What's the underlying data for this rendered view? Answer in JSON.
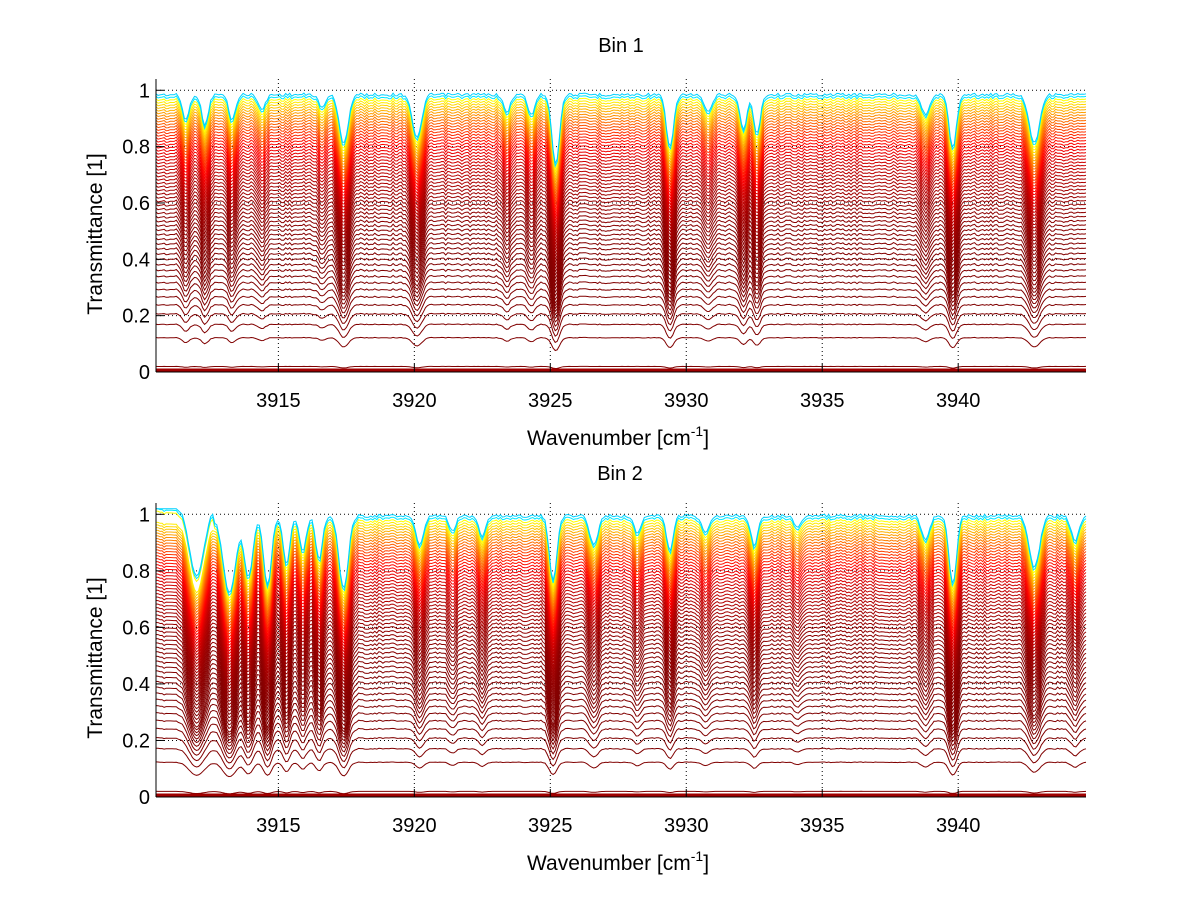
{
  "chart_data": [
    {
      "type": "line",
      "title": "Bin 1",
      "xlabel": "Wavenumber [cm",
      "xlabel_superscript": "-1",
      "xlabel_suffix": "]",
      "ylabel": "Transmittance [1]",
      "xlim": [
        3910.5,
        3944.7
      ],
      "ylim": [
        0,
        1.04
      ],
      "xticks": [
        3915,
        3920,
        3925,
        3930,
        3935,
        3940
      ],
      "xtick_labels": [
        "3915",
        "3920",
        "3925",
        "3930",
        "3935",
        "3940"
      ],
      "yticks": [
        0,
        0.2,
        0.4,
        0.6,
        0.8,
        1
      ],
      "ytick_labels": [
        "0",
        "0.2",
        "0.4",
        "0.6",
        "0.8",
        "1"
      ],
      "grid": "dotted",
      "series_count": 60,
      "colormap": "jet",
      "baseline_transmittance_range": [
        0.0,
        0.99
      ],
      "absorption_lines": [
        {
          "center": 3911.6,
          "depth": 0.1,
          "width": 0.12
        },
        {
          "center": 3912.3,
          "depth": 0.12,
          "width": 0.12
        },
        {
          "center": 3913.3,
          "depth": 0.1,
          "width": 0.12
        },
        {
          "center": 3914.4,
          "depth": 0.06,
          "width": 0.12
        },
        {
          "center": 3916.6,
          "depth": 0.05,
          "width": 0.12
        },
        {
          "center": 3917.4,
          "depth": 0.2,
          "width": 0.16
        },
        {
          "center": 3920.1,
          "depth": 0.18,
          "width": 0.16
        },
        {
          "center": 3923.4,
          "depth": 0.07,
          "width": 0.12
        },
        {
          "center": 3924.3,
          "depth": 0.08,
          "width": 0.12
        },
        {
          "center": 3925.2,
          "depth": 0.3,
          "width": 0.13
        },
        {
          "center": 3929.4,
          "depth": 0.22,
          "width": 0.13
        },
        {
          "center": 3930.8,
          "depth": 0.07,
          "width": 0.14
        },
        {
          "center": 3932.1,
          "depth": 0.14,
          "width": 0.12
        },
        {
          "center": 3932.6,
          "depth": 0.16,
          "width": 0.12
        },
        {
          "center": 3938.8,
          "depth": 0.08,
          "width": 0.14
        },
        {
          "center": 3939.8,
          "depth": 0.22,
          "width": 0.13
        },
        {
          "center": 3942.8,
          "depth": 0.2,
          "width": 0.18
        }
      ]
    },
    {
      "type": "line",
      "title": "Bin 2",
      "xlabel": "Wavenumber [cm",
      "xlabel_superscript": "-1",
      "xlabel_suffix": "]",
      "ylabel": "Transmittance [1]",
      "xlim": [
        3910.5,
        3944.7
      ],
      "ylim": [
        0,
        1.04
      ],
      "xticks": [
        3915,
        3920,
        3925,
        3930,
        3935,
        3940
      ],
      "xtick_labels": [
        "3915",
        "3920",
        "3925",
        "3930",
        "3935",
        "3940"
      ],
      "yticks": [
        0,
        0.2,
        0.4,
        0.6,
        0.8,
        1
      ],
      "ytick_labels": [
        "0",
        "0.2",
        "0.4",
        "0.6",
        "0.8",
        "1"
      ],
      "grid": "dotted",
      "series_count": 60,
      "colormap": "jet",
      "baseline_transmittance_range": [
        0.0,
        1.0
      ],
      "absorption_lines": [
        {
          "center": 3912.0,
          "depth": 0.3,
          "width": 0.25
        },
        {
          "center": 3913.2,
          "depth": 0.34,
          "width": 0.22
        },
        {
          "center": 3913.9,
          "depth": 0.26,
          "width": 0.15
        },
        {
          "center": 3914.6,
          "depth": 0.3,
          "width": 0.14
        },
        {
          "center": 3915.3,
          "depth": 0.2,
          "width": 0.12
        },
        {
          "center": 3915.9,
          "depth": 0.14,
          "width": 0.12
        },
        {
          "center": 3916.5,
          "depth": 0.18,
          "width": 0.12
        },
        {
          "center": 3917.4,
          "depth": 0.32,
          "width": 0.16
        },
        {
          "center": 3920.2,
          "depth": 0.12,
          "width": 0.14
        },
        {
          "center": 3921.4,
          "depth": 0.06,
          "width": 0.12
        },
        {
          "center": 3922.5,
          "depth": 0.08,
          "width": 0.12
        },
        {
          "center": 3925.1,
          "depth": 0.28,
          "width": 0.13
        },
        {
          "center": 3926.6,
          "depth": 0.12,
          "width": 0.14
        },
        {
          "center": 3928.2,
          "depth": 0.07,
          "width": 0.12
        },
        {
          "center": 3929.4,
          "depth": 0.14,
          "width": 0.12
        },
        {
          "center": 3930.7,
          "depth": 0.06,
          "width": 0.14
        },
        {
          "center": 3932.5,
          "depth": 0.12,
          "width": 0.12
        },
        {
          "center": 3934.1,
          "depth": 0.04,
          "width": 0.14
        },
        {
          "center": 3938.8,
          "depth": 0.1,
          "width": 0.14
        },
        {
          "center": 3939.8,
          "depth": 0.3,
          "width": 0.13
        },
        {
          "center": 3942.8,
          "depth": 0.22,
          "width": 0.18
        },
        {
          "center": 3944.3,
          "depth": 0.1,
          "width": 0.14
        }
      ]
    }
  ]
}
